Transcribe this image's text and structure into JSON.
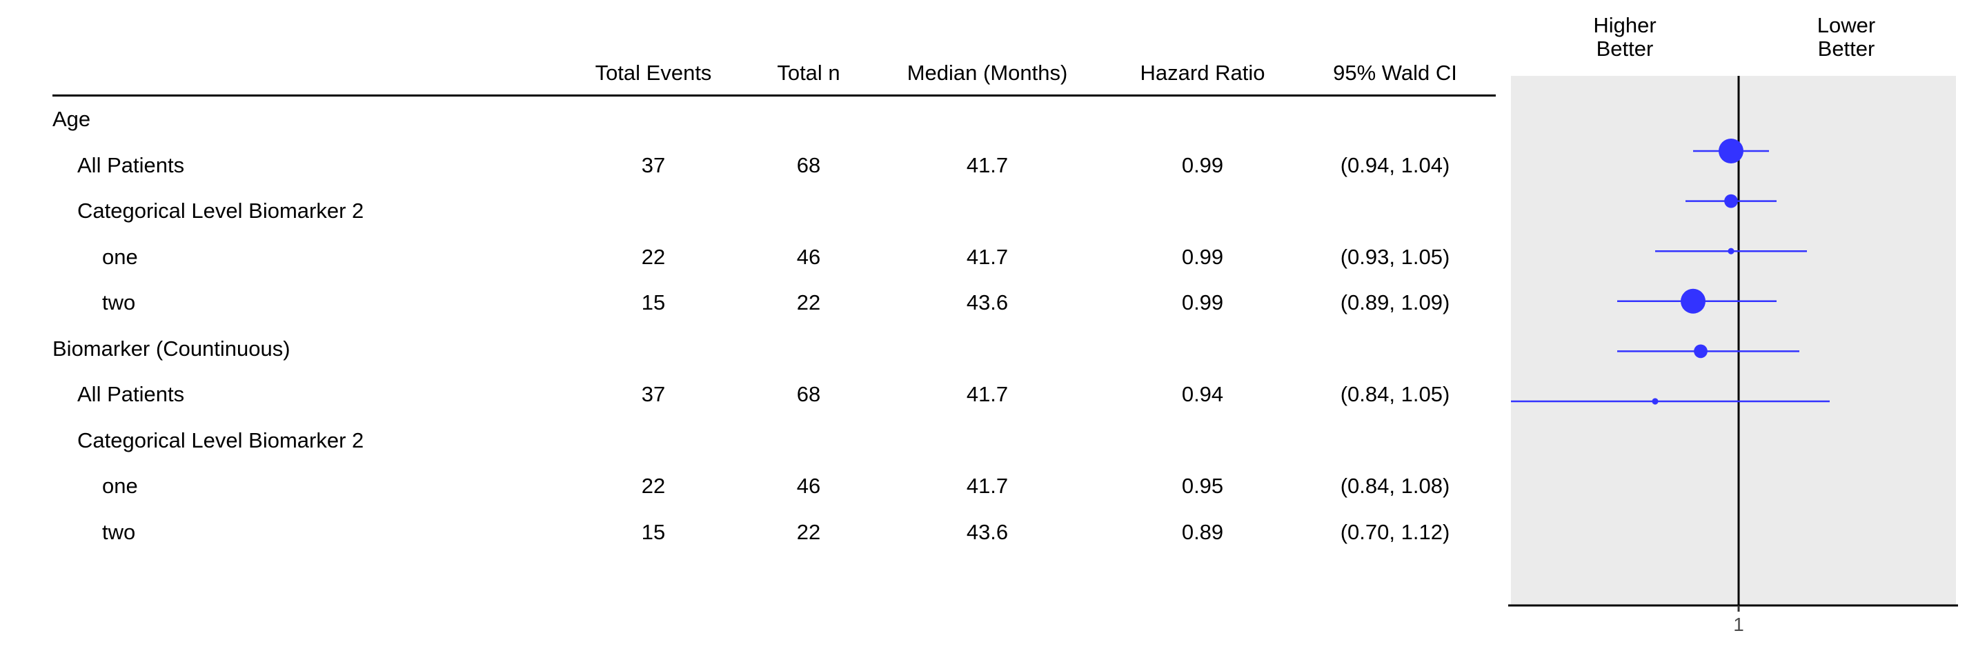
{
  "chart_data": {
    "type": "forest",
    "columns": [
      "Total Events",
      "Total n",
      "Median (Months)",
      "Hazard Ratio",
      "95% Wald CI"
    ],
    "direction_labels": {
      "left": "Higher\nBetter",
      "right": "Lower\nBetter"
    },
    "reference_line": 1,
    "x_tick_labels": [
      "1"
    ],
    "rows": [
      {
        "label": "Age",
        "level": 0,
        "group": true
      },
      {
        "label": "All Patients",
        "level": 1,
        "events": "37",
        "n": "68",
        "median": "41.7",
        "hr_text": "0.99",
        "ci_text": "(0.94, 1.04)",
        "hr": 0.99,
        "lo": 0.94,
        "hi": 1.04,
        "size": 68
      },
      {
        "label": "Categorical Level Biomarker 2",
        "level": 1,
        "group": true
      },
      {
        "label": "one",
        "level": 2,
        "events": "22",
        "n": "46",
        "median": "41.7",
        "hr_text": "0.99",
        "ci_text": "(0.93, 1.05)",
        "hr": 0.99,
        "lo": 0.93,
        "hi": 1.05,
        "size": 46
      },
      {
        "label": "two",
        "level": 2,
        "events": "15",
        "n": "22",
        "median": "43.6",
        "hr_text": "0.99",
        "ci_text": "(0.89, 1.09)",
        "hr": 0.99,
        "lo": 0.89,
        "hi": 1.09,
        "size": 22
      },
      {
        "label": "Biomarker (Countinuous)",
        "level": 0,
        "group": true
      },
      {
        "label": "All Patients",
        "level": 1,
        "events": "37",
        "n": "68",
        "median": "41.7",
        "hr_text": "0.94",
        "ci_text": "(0.84, 1.05)",
        "hr": 0.94,
        "lo": 0.84,
        "hi": 1.05,
        "size": 68
      },
      {
        "label": "Categorical Level Biomarker 2",
        "level": 1,
        "group": true
      },
      {
        "label": "one",
        "level": 2,
        "events": "22",
        "n": "46",
        "median": "41.7",
        "hr_text": "0.95",
        "ci_text": "(0.84, 1.08)",
        "hr": 0.95,
        "lo": 0.84,
        "hi": 1.08,
        "size": 46
      },
      {
        "label": "two",
        "level": 2,
        "events": "15",
        "n": "22",
        "median": "43.6",
        "hr_text": "0.89",
        "ci_text": "(0.70, 1.12)",
        "hr": 0.89,
        "lo": 0.7,
        "hi": 1.12,
        "size": 22
      }
    ],
    "colors": {
      "point": "#3333ff",
      "panel": "#ebebeb",
      "axis": "#000000",
      "tick_text": "#4d4d4d"
    }
  }
}
